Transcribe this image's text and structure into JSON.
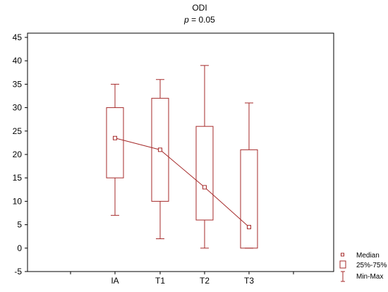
{
  "chart_data": {
    "type": "boxplot",
    "title": "ODI",
    "subtitle_italic": "p",
    "subtitle_rest": " = 0.05",
    "categories": [
      "IA",
      "T1",
      "T2",
      "T3"
    ],
    "series": [
      {
        "category": "IA",
        "min": 7,
        "q1": 15,
        "median": 23.5,
        "q3": 30,
        "max": 35
      },
      {
        "category": "T1",
        "min": 2,
        "q1": 10,
        "median": 21,
        "q3": 32,
        "max": 36
      },
      {
        "category": "T2",
        "min": 0,
        "q1": 6,
        "median": 13,
        "q3": 26,
        "max": 39
      },
      {
        "category": "T3",
        "min": 0,
        "q1": 0,
        "median": 4.5,
        "q3": 21,
        "max": 31
      }
    ],
    "ylim": [
      -5,
      45
    ],
    "yticks": [
      "45",
      "40",
      "35",
      "30",
      "25",
      "20",
      "15",
      "10",
      "5",
      "0",
      "-5"
    ],
    "legend": {
      "position": "bottom-right",
      "items": [
        "Median",
        "25%-75%",
        "Min-Max"
      ]
    },
    "colors": {
      "series": "#a52a2a",
      "gridline": "#000000"
    }
  }
}
